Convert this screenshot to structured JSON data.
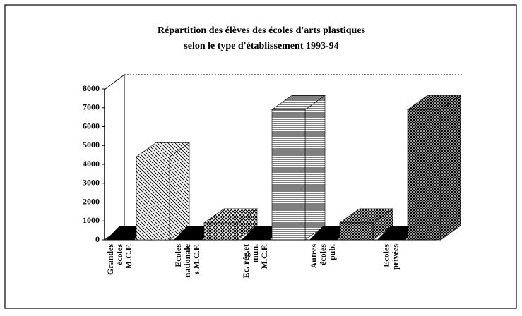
{
  "chart_data": {
    "type": "bar3d",
    "title": [
      "Répartition des élèves des écoles d'arts plastiques",
      "selon le type d'établissement 1993-94"
    ],
    "categories": [
      [
        "Grandes",
        "écoles",
        "M.C.F."
      ],
      [
        "Ecoles",
        "nationale",
        "s M.C.F."
      ],
      [
        "Ec. rég.et",
        "mun.",
        "M.C.F."
      ],
      [
        "Autres",
        "écoles",
        "pub."
      ],
      [
        "Ecoles",
        "privées"
      ]
    ],
    "values": [
      4400,
      900,
      6900,
      900,
      6900
    ],
    "ylim": [
      0,
      8000
    ],
    "yticks": [
      0,
      1000,
      2000,
      3000,
      4000,
      5000,
      6000,
      7000,
      8000
    ]
  }
}
